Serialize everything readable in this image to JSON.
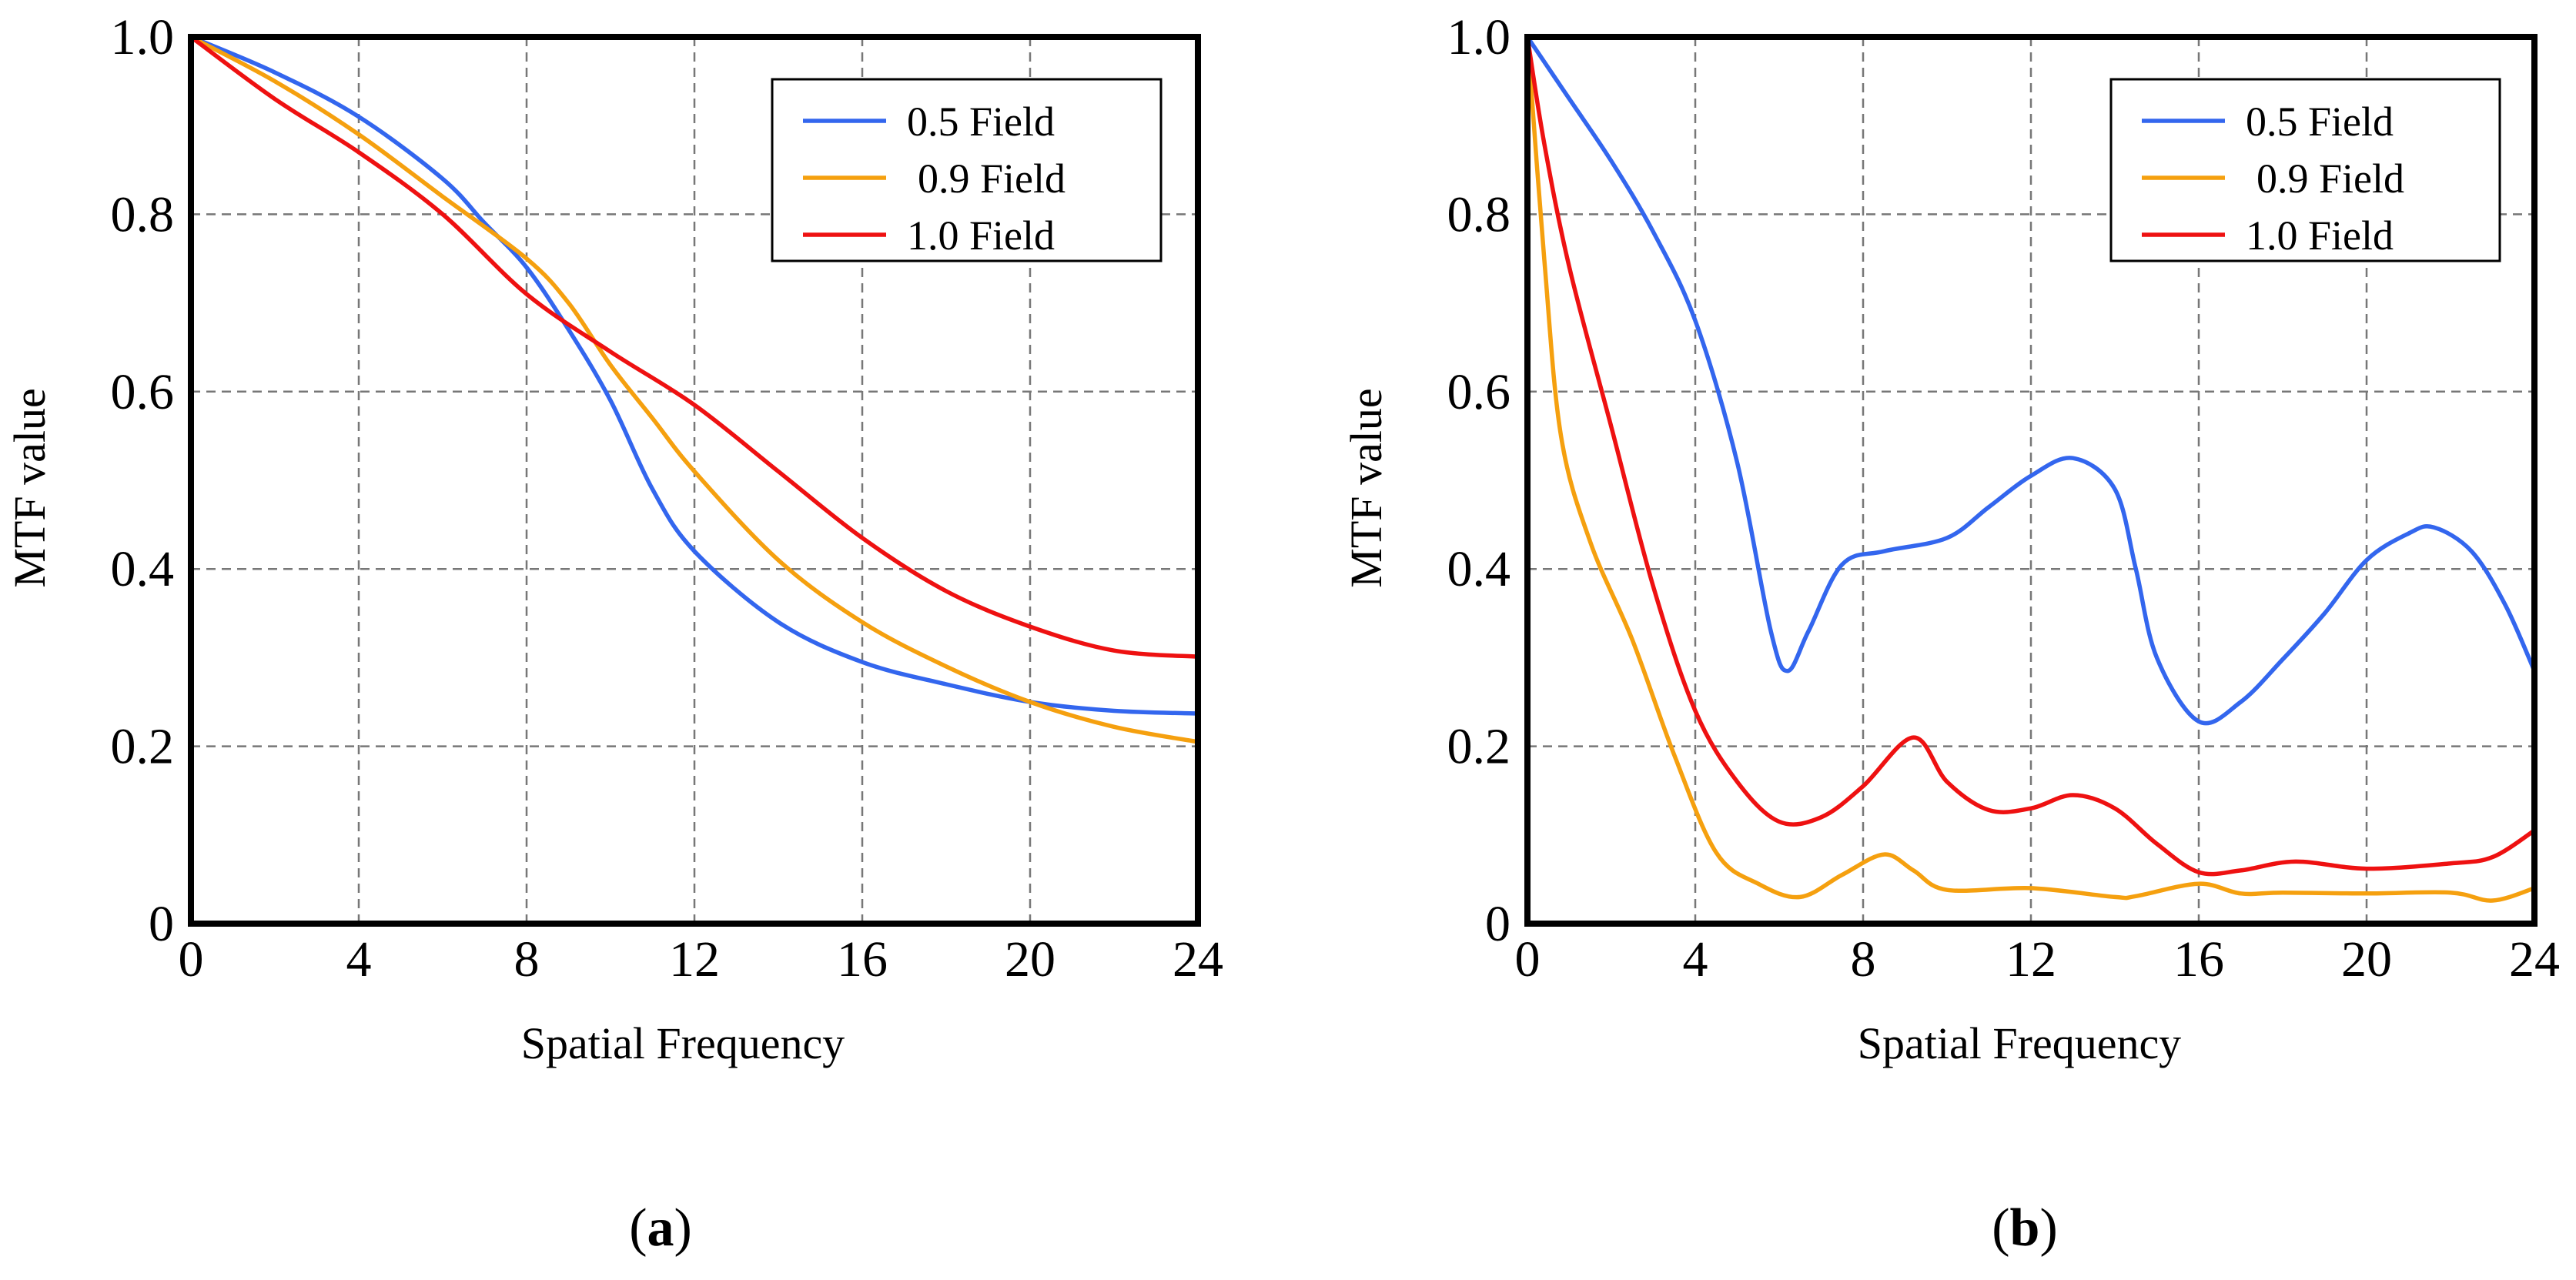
{
  "colors": {
    "blue": "#3366ee",
    "orange": "#f5a00f",
    "red": "#ee1111",
    "grid": "#777777",
    "axis": "#000000"
  },
  "chart_data": [
    {
      "id": "a",
      "type": "line",
      "panel_label": "a",
      "xlabel": "Spatial Frequency",
      "ylabel": "MTF value",
      "xlim": [
        0,
        24
      ],
      "ylim": [
        0,
        1.0
      ],
      "xticks": [
        0,
        4,
        8,
        12,
        16,
        20,
        24
      ],
      "yticks": [
        0,
        0.2,
        0.4,
        0.6,
        0.8,
        1.0
      ],
      "xtick_labels": [
        "0",
        "4",
        "8",
        "12",
        "16",
        "20",
        "24"
      ],
      "ytick_labels": [
        "0",
        "0.2",
        "0.4",
        "0.6",
        "0.8",
        "1.0"
      ],
      "grid": true,
      "legend_position": "top-right",
      "series": [
        {
          "name": "0.5 Field",
          "color": "#3366ee",
          "x": [
            0,
            2,
            4,
            6,
            7,
            8,
            9,
            10,
            11,
            12,
            14,
            16,
            18,
            20,
            22,
            24
          ],
          "y": [
            1.0,
            0.96,
            0.91,
            0.84,
            0.79,
            0.74,
            0.67,
            0.59,
            0.49,
            0.42,
            0.34,
            0.295,
            0.27,
            0.25,
            0.24,
            0.237
          ]
        },
        {
          "name": "0.9 Field",
          "color": "#f5a00f",
          "x": [
            0,
            2,
            4,
            6,
            8,
            9,
            10,
            11,
            12,
            14,
            16,
            18,
            20,
            22,
            24
          ],
          "y": [
            1.0,
            0.95,
            0.89,
            0.82,
            0.75,
            0.7,
            0.63,
            0.57,
            0.51,
            0.41,
            0.34,
            0.29,
            0.25,
            0.222,
            0.205
          ]
        },
        {
          "name": "1.0 Field",
          "color": "#ee1111",
          "x": [
            0,
            2,
            4,
            6,
            8,
            10,
            12,
            14,
            16,
            18,
            20,
            22,
            24
          ],
          "y": [
            1.0,
            0.93,
            0.87,
            0.8,
            0.71,
            0.645,
            0.585,
            0.51,
            0.435,
            0.375,
            0.335,
            0.308,
            0.301
          ]
        }
      ]
    },
    {
      "id": "b",
      "type": "line",
      "panel_label": "b",
      "xlabel": "Spatial Frequency",
      "ylabel": "MTF value",
      "xlim": [
        0,
        24
      ],
      "ylim": [
        0,
        1.0
      ],
      "xticks": [
        0,
        4,
        8,
        12,
        16,
        20,
        24
      ],
      "yticks": [
        0,
        0.2,
        0.4,
        0.6,
        0.8,
        1.0
      ],
      "xtick_labels": [
        "0",
        "4",
        "8",
        "12",
        "16",
        "20",
        "24"
      ],
      "ytick_labels": [
        "0",
        "0.2",
        "0.4",
        "0.6",
        "0.8",
        "1.0"
      ],
      "grid": true,
      "legend_position": "top-right",
      "series": [
        {
          "name": "0.5 Field",
          "color": "#3366ee",
          "x": [
            0,
            1,
            2,
            3,
            4,
            5,
            5.8,
            6.2,
            6.7,
            7.5,
            8.5,
            10,
            11,
            12,
            13,
            14,
            14.5,
            15,
            16,
            17,
            18,
            19,
            20,
            21,
            21.6,
            22.5,
            23.3,
            24
          ],
          "y": [
            1.0,
            0.93,
            0.86,
            0.78,
            0.68,
            0.52,
            0.33,
            0.285,
            0.33,
            0.405,
            0.42,
            0.435,
            0.47,
            0.505,
            0.525,
            0.49,
            0.4,
            0.3,
            0.228,
            0.25,
            0.298,
            0.35,
            0.41,
            0.44,
            0.447,
            0.42,
            0.36,
            0.285
          ]
        },
        {
          "name": "0.9 Field",
          "color": "#f5a00f",
          "x": [
            0,
            0.4,
            0.8,
            1.5,
            2.5,
            3.5,
            4.5,
            5.5,
            6.5,
            7.5,
            8.5,
            9.2,
            10,
            12,
            14,
            14.5,
            16,
            17,
            18,
            20,
            22,
            23,
            24
          ],
          "y": [
            1.0,
            0.75,
            0.55,
            0.43,
            0.32,
            0.19,
            0.08,
            0.045,
            0.03,
            0.055,
            0.078,
            0.06,
            0.038,
            0.04,
            0.03,
            0.031,
            0.045,
            0.034,
            0.035,
            0.034,
            0.035,
            0.026,
            0.04
          ]
        },
        {
          "name": "1.0 Field",
          "color": "#ee1111",
          "x": [
            0,
            0.4,
            1,
            2,
            3,
            4,
            5,
            6,
            7,
            8,
            9.2,
            10,
            11,
            12,
            13,
            14,
            15,
            16,
            17,
            18.3,
            20,
            22,
            23,
            24
          ],
          "y": [
            1.0,
            0.88,
            0.74,
            0.56,
            0.38,
            0.24,
            0.16,
            0.115,
            0.12,
            0.155,
            0.21,
            0.16,
            0.128,
            0.13,
            0.145,
            0.13,
            0.09,
            0.058,
            0.06,
            0.07,
            0.062,
            0.068,
            0.075,
            0.105
          ]
        }
      ]
    }
  ]
}
